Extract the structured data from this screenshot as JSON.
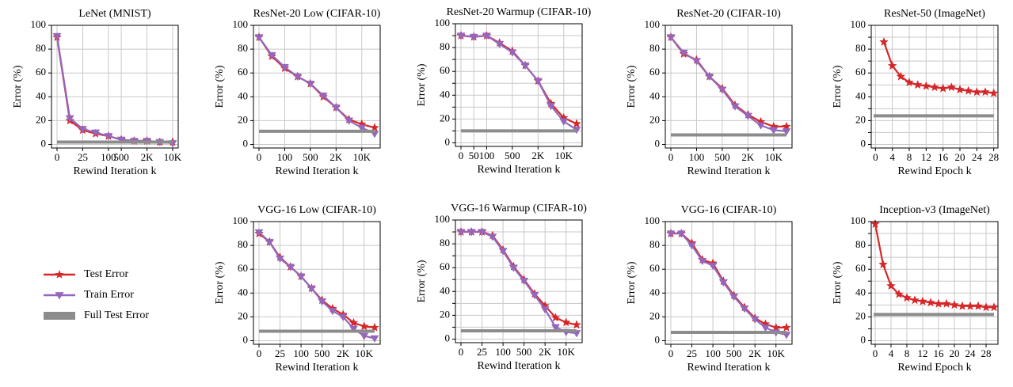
{
  "chart_data": [
    {
      "type": "line",
      "title": "LeNet (MNIST)",
      "xlabel": "Rewind Iteration k",
      "ylabel": "Error (%)",
      "categories": [
        "0",
        null,
        "25",
        null,
        "100",
        "500",
        null,
        "2K",
        null,
        "10K"
      ],
      "ylim": [
        -3,
        100
      ],
      "yticks": [
        0,
        20,
        40,
        60,
        80,
        100
      ],
      "grid": true,
      "series": [
        {
          "name": "Test Error",
          "color": "#d62728",
          "marker": "star",
          "values": [
            90,
            20,
            12,
            9,
            7,
            4,
            3,
            3,
            2,
            2
          ]
        },
        {
          "name": "Train Error",
          "color": "#9467bd",
          "marker": "triangle",
          "values": [
            91,
            22,
            13,
            10,
            7,
            4,
            3,
            3,
            2,
            1
          ]
        },
        {
          "name": "Full Test Error",
          "color": "#8c8c8c",
          "value": 2
        }
      ]
    },
    {
      "type": "line",
      "title": "ResNet-20 Low (CIFAR-10)",
      "xlabel": "Rewind Iteration k",
      "ylabel": "Error (%)",
      "categories": [
        "0",
        null,
        "100",
        null,
        "500",
        null,
        "2K",
        null,
        "10K",
        null
      ],
      "ylim": [
        -3,
        100
      ],
      "yticks": [
        0,
        20,
        40,
        60,
        80,
        100
      ],
      "grid": true,
      "series": [
        {
          "color": "#d62728",
          "marker": "star",
          "values": [
            90,
            74,
            64,
            57,
            51,
            40,
            31,
            21,
            17,
            14
          ]
        },
        {
          "color": "#9467bd",
          "marker": "triangle",
          "values": [
            90,
            75,
            65,
            57,
            51,
            41,
            31,
            20,
            14,
            9
          ]
        },
        {
          "color": "#8c8c8c",
          "value": 11
        }
      ]
    },
    {
      "type": "line",
      "title": "ResNet-20 Warmup (CIFAR-10)",
      "xlabel": "Rewind Iteration k",
      "ylabel": "Error (%)",
      "categories": [
        "0",
        "50",
        "100",
        null,
        "500",
        null,
        "2K",
        null,
        "10K",
        null
      ],
      "ylim": [
        -3,
        100
      ],
      "yticks": [
        0,
        10,
        20,
        30,
        40,
        50,
        60,
        70,
        80,
        90,
        100
      ],
      "grid": true,
      "series": [
        {
          "color": "#d62728",
          "marker": "star",
          "values": [
            90,
            89,
            90,
            84,
            77,
            65,
            52,
            33,
            21,
            16
          ]
        },
        {
          "color": "#9467bd",
          "marker": "triangle",
          "values": [
            90,
            89,
            90,
            83,
            76,
            65,
            52,
            31,
            18,
            11
          ]
        },
        {
          "color": "#8c8c8c",
          "value": 10
        }
      ]
    },
    {
      "type": "line",
      "title": "ResNet-20 (CIFAR-10)",
      "xlabel": "Rewind Iteration k",
      "ylabel": "Error (%)",
      "categories": [
        "0",
        null,
        "100",
        null,
        "500",
        null,
        "2K",
        null,
        "10K",
        null
      ],
      "ylim": [
        -3,
        100
      ],
      "yticks": [
        0,
        20,
        40,
        60,
        80,
        100
      ],
      "grid": true,
      "series": [
        {
          "color": "#d62728",
          "marker": "star",
          "values": [
            90,
            76,
            71,
            57,
            47,
            33,
            25,
            19,
            15,
            15
          ]
        },
        {
          "color": "#9467bd",
          "marker": "triangle",
          "values": [
            90,
            77,
            70,
            57,
            46,
            32,
            24,
            16,
            12,
            11
          ]
        },
        {
          "color": "#8c8c8c",
          "value": 8
        }
      ]
    },
    {
      "type": "line",
      "title": "ResNet-50 (ImageNet)",
      "xlabel": "Rewind Epoch k",
      "ylabel": "Error (%)",
      "x": [
        2,
        4,
        6,
        8,
        10,
        12,
        14,
        16,
        18,
        20,
        22,
        24,
        26,
        28
      ],
      "xlim": [
        -1,
        29
      ],
      "xticks": [
        0,
        4,
        8,
        12,
        16,
        20,
        24,
        28
      ],
      "ylim": [
        -3,
        100
      ],
      "yticks": [
        0,
        10,
        20,
        30,
        40,
        50,
        60,
        70,
        80,
        90,
        100
      ],
      "grid": true,
      "series": [
        {
          "color": "#d62728",
          "marker": "star",
          "values": [
            86,
            66,
            57,
            52,
            50,
            49,
            48,
            47,
            48,
            46,
            45,
            44,
            44,
            43
          ]
        },
        {
          "color": "#8c8c8c",
          "value": 24
        }
      ]
    },
    {
      "type": "line",
      "title": "VGG-16 Low (CIFAR-10)",
      "xlabel": "Rewind Iteration k",
      "ylabel": "Error (%)",
      "categories": [
        "0",
        null,
        "25",
        null,
        "100",
        null,
        "500",
        null,
        "2K",
        null,
        "10K",
        null
      ],
      "ylim": [
        -3,
        100
      ],
      "yticks": [
        0,
        20,
        40,
        60,
        80,
        100
      ],
      "grid": true,
      "series": [
        {
          "color": "#d62728",
          "marker": "star",
          "values": [
            90,
            83,
            70,
            62,
            54,
            44,
            34,
            27,
            22,
            15,
            12,
            11
          ]
        },
        {
          "color": "#9467bd",
          "marker": "triangle",
          "values": [
            91,
            83,
            69,
            62,
            54,
            44,
            33,
            25,
            20,
            10,
            4,
            2
          ]
        },
        {
          "color": "#8c8c8c",
          "value": 8
        }
      ]
    },
    {
      "type": "line",
      "title": "VGG-16 Warmup (CIFAR-10)",
      "xlabel": "Rewind Iteration k",
      "ylabel": "Error (%)",
      "categories": [
        "0",
        null,
        "25",
        null,
        "100",
        null,
        "500",
        null,
        "2K",
        null,
        "10K",
        null
      ],
      "ylim": [
        -3,
        100
      ],
      "yticks": [
        0,
        10,
        20,
        30,
        40,
        50,
        60,
        70,
        80,
        90,
        100
      ],
      "grid": true,
      "series": [
        {
          "color": "#d62728",
          "marker": "star",
          "values": [
            90,
            90,
            90,
            87,
            75,
            61,
            50,
            38,
            28,
            18,
            14,
            12
          ]
        },
        {
          "color": "#9467bd",
          "marker": "triangle",
          "values": [
            90,
            90,
            90,
            86,
            74,
            60,
            49,
            37,
            25,
            10,
            6,
            5
          ]
        },
        {
          "color": "#8c8c8c",
          "value": 7
        }
      ]
    },
    {
      "type": "line",
      "title": "VGG-16 (CIFAR-10)",
      "xlabel": "Rewind Iteration k",
      "ylabel": "Error (%)",
      "categories": [
        "0",
        null,
        "25",
        null,
        "100",
        null,
        "500",
        null,
        "2K",
        null,
        "10K",
        null
      ],
      "ylim": [
        -3,
        100
      ],
      "yticks": [
        0,
        20,
        40,
        60,
        80,
        100
      ],
      "grid": true,
      "series": [
        {
          "color": "#d62728",
          "marker": "star",
          "values": [
            90,
            90,
            82,
            68,
            65,
            50,
            38,
            28,
            19,
            14,
            11,
            11
          ]
        },
        {
          "color": "#9467bd",
          "marker": "triangle",
          "values": [
            90,
            90,
            80,
            67,
            63,
            49,
            37,
            27,
            18,
            11,
            7,
            5
          ]
        },
        {
          "color": "#8c8c8c",
          "value": 7
        }
      ]
    },
    {
      "type": "line",
      "title": "Inception-v3 (ImageNet)",
      "xlabel": "Rewind Epoch k",
      "ylabel": "Error (%)",
      "x": [
        0,
        2,
        4,
        6,
        8,
        10,
        12,
        14,
        16,
        18,
        20,
        22,
        24,
        26,
        28,
        30
      ],
      "xlim": [
        -1,
        31
      ],
      "xticks": [
        0,
        4,
        8,
        12,
        16,
        20,
        24,
        28
      ],
      "ylim": [
        -3,
        100
      ],
      "yticks": [
        0,
        10,
        20,
        30,
        40,
        50,
        60,
        70,
        80,
        90,
        100
      ],
      "grid": true,
      "series": [
        {
          "color": "#d62728",
          "marker": "star",
          "values": [
            98,
            64,
            46,
            39,
            36,
            34,
            33,
            32,
            31,
            31,
            30,
            29,
            29,
            29,
            28,
            28
          ]
        },
        {
          "color": "#8c8c8c",
          "value": 22
        }
      ]
    }
  ]
}
